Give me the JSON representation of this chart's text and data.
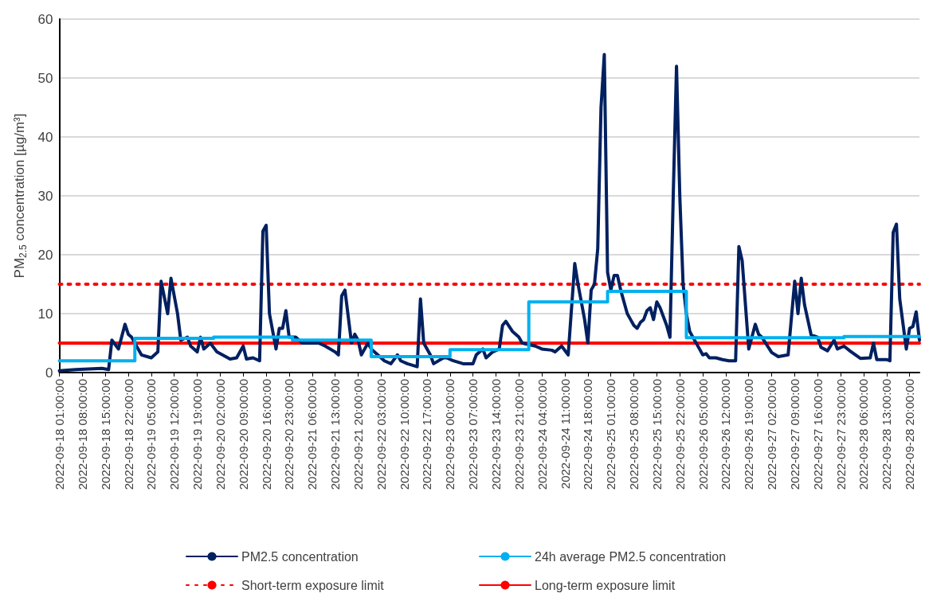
{
  "chart_data": {
    "type": "line",
    "ylabel": "PM$_{2.5}$ concentration [µg/m³]",
    "xlim": [
      "2022-09-18T01:00",
      "2022-09-28T23:00"
    ],
    "xticks": [
      {
        "value": "2022-09-18T01:00",
        "label": "2022-09-18 01:00:00"
      },
      {
        "value": "2022-09-18T08:00",
        "label": "2022-09-18 08:00:00"
      },
      {
        "value": "2022-09-18T15:00",
        "label": "2022-09-18 15:00:00"
      },
      {
        "value": "2022-09-18T22:00",
        "label": "2022-09-18 22:00:00"
      },
      {
        "value": "2022-09-19T05:00",
        "label": "2022-09-19 05:00:00"
      },
      {
        "value": "2022-09-19T12:00",
        "label": "2022-09-19 12:00:00"
      },
      {
        "value": "2022-09-19T19:00",
        "label": "2022-09-19 19:00:00"
      },
      {
        "value": "2022-09-20T02:00",
        "label": "2022-09-20 02:00:00"
      },
      {
        "value": "2022-09-20T09:00",
        "label": "2022-09-20 09:00:00"
      },
      {
        "value": "2022-09-20T16:00",
        "label": "2022-09-20 16:00:00"
      },
      {
        "value": "2022-09-20T23:00",
        "label": "2022-09-20 23:00:00"
      },
      {
        "value": "2022-09-21T06:00",
        "label": "2022-09-21 06:00:00"
      },
      {
        "value": "2022-09-21T13:00",
        "label": "2022-09-21 13:00:00"
      },
      {
        "value": "2022-09-21T20:00",
        "label": "2022-09-21 20:00:00"
      },
      {
        "value": "2022-09-22T03:00",
        "label": "2022-09-22 03:00:00"
      },
      {
        "value": "2022-09-22T10:00",
        "label": "2022-09-22 10:00:00"
      },
      {
        "value": "2022-09-22T17:00",
        "label": "2022-09-22 17:00:00"
      },
      {
        "value": "2022-09-23T00:00",
        "label": "2022-09-23 00:00:00"
      },
      {
        "value": "2022-09-23T07:00",
        "label": "2022-09-23 07:00:00"
      },
      {
        "value": "2022-09-23T14:00",
        "label": "2022-09-23 14:00:00"
      },
      {
        "value": "2022-09-23T21:00",
        "label": "2022-09-23 21:00:00"
      },
      {
        "value": "2022-09-24T04:00",
        "label": "2022-09-24 04:00:00"
      },
      {
        "value": "2022-09-24T11:00",
        "label": "2022-09-24 11:00:00"
      },
      {
        "value": "2022-09-24T18:00",
        "label": "2022-09-24 18:00:00"
      },
      {
        "value": "2022-09-25T01:00",
        "label": "2022-09-25 01:00:00"
      },
      {
        "value": "2022-09-25T08:00",
        "label": "2022-09-25 08:00:00"
      },
      {
        "value": "2022-09-25T15:00",
        "label": "2022-09-25 15:00:00"
      },
      {
        "value": "2022-09-25T22:00",
        "label": "2022-09-25 22:00:00"
      },
      {
        "value": "2022-09-26T05:00",
        "label": "2022-09-26 05:00:00"
      },
      {
        "value": "2022-09-26T12:00",
        "label": "2022-09-26 12:00:00"
      },
      {
        "value": "2022-09-26T19:00",
        "label": "2022-09-26 19:00:00"
      },
      {
        "value": "2022-09-27T02:00",
        "label": "2022-09-27 02:00:00"
      },
      {
        "value": "2022-09-27T09:00",
        "label": "2022-09-27 09:00:00"
      },
      {
        "value": "2022-09-27T16:00",
        "label": "2022-09-27 16:00:00"
      },
      {
        "value": "2022-09-27T23:00",
        "label": "2022-09-27 23:00:00"
      },
      {
        "value": "2022-09-28T06:00",
        "label": "2022-09-28 06:00:00"
      },
      {
        "value": "2022-09-28T13:00",
        "label": "2022-09-28 13:00:00"
      },
      {
        "value": "2022-09-28T20:00",
        "label": "2022-09-28 20:00:00"
      }
    ],
    "ylim": [
      0,
      60
    ],
    "yticks": [
      0,
      10,
      20,
      30,
      40,
      50,
      60
    ],
    "grid": "y",
    "legend": "bottom",
    "marker": "none",
    "line_style": "solid",
    "series": [
      {
        "name": "PM2.5 concentration",
        "type": "line",
        "color": "#002060",
        "x": [
          "2022-09-18T01:00",
          "2022-09-18T06:00",
          "2022-09-18T14:00",
          "2022-09-18T16:00",
          "2022-09-18T17:00",
          "2022-09-18T19:00",
          "2022-09-18T21:00",
          "2022-09-18T22:00",
          "2022-09-18T23:00",
          "2022-09-19T01:00",
          "2022-09-19T02:00",
          "2022-09-19T05:00",
          "2022-09-19T07:00",
          "2022-09-19T08:00",
          "2022-09-19T10:00",
          "2022-09-19T11:00",
          "2022-09-19T13:00",
          "2022-09-19T14:00",
          "2022-09-19T16:00",
          "2022-09-19T17:00",
          "2022-09-19T19:00",
          "2022-09-19T20:00",
          "2022-09-19T21:00",
          "2022-09-19T23:00",
          "2022-09-20T01:00",
          "2022-09-20T05:00",
          "2022-09-20T07:00",
          "2022-09-20T09:00",
          "2022-09-20T10:00",
          "2022-09-20T12:00",
          "2022-09-20T14:00",
          "2022-09-20T15:00",
          "2022-09-20T16:00",
          "2022-09-20T17:00",
          "2022-09-20T19:00",
          "2022-09-20T20:00",
          "2022-09-20T21:00",
          "2022-09-20T22:00",
          "2022-09-20T23:00",
          "2022-09-21T01:00",
          "2022-09-21T03:00",
          "2022-09-21T05:00",
          "2022-09-21T08:00",
          "2022-09-21T10:00",
          "2022-09-21T13:00",
          "2022-09-21T14:00",
          "2022-09-21T15:00",
          "2022-09-21T16:00",
          "2022-09-21T18:00",
          "2022-09-21T19:00",
          "2022-09-21T20:00",
          "2022-09-21T21:00",
          "2022-09-21T23:00",
          "2022-09-22T00:00",
          "2022-09-22T02:00",
          "2022-09-22T04:00",
          "2022-09-22T06:00",
          "2022-09-22T08:00",
          "2022-09-22T09:00",
          "2022-09-22T11:00",
          "2022-09-22T14:00",
          "2022-09-22T15:00",
          "2022-09-22T16:00",
          "2022-09-22T18:00",
          "2022-09-22T19:00",
          "2022-09-22T22:00",
          "2022-09-22T23:00",
          "2022-09-23T01:00",
          "2022-09-23T04:00",
          "2022-09-23T07:00",
          "2022-09-23T08:00",
          "2022-09-23T10:00",
          "2022-09-23T11:00",
          "2022-09-23T13:00",
          "2022-09-23T15:00",
          "2022-09-23T16:00",
          "2022-09-23T17:00",
          "2022-09-23T19:00",
          "2022-09-23T21:00",
          "2022-09-23T22:00",
          "2022-09-24T02:00",
          "2022-09-24T04:00",
          "2022-09-24T07:00",
          "2022-09-24T08:00",
          "2022-09-24T10:00",
          "2022-09-24T12:00",
          "2022-09-24T14:00",
          "2022-09-24T15:00",
          "2022-09-24T17:00",
          "2022-09-24T18:00",
          "2022-09-24T19:00",
          "2022-09-24T20:00",
          "2022-09-24T21:00",
          "2022-09-24T22:00",
          "2022-09-24T23:00",
          "2022-09-25T00:00",
          "2022-09-25T01:00",
          "2022-09-25T02:00",
          "2022-09-25T03:00",
          "2022-09-25T04:00",
          "2022-09-25T05:00",
          "2022-09-25T06:00",
          "2022-09-25T07:00",
          "2022-09-25T08:00",
          "2022-09-25T09:00",
          "2022-09-25T10:00",
          "2022-09-25T11:00",
          "2022-09-25T12:00",
          "2022-09-25T13:00",
          "2022-09-25T14:00",
          "2022-09-25T15:00",
          "2022-09-25T16:00",
          "2022-09-25T17:00",
          "2022-09-25T18:00",
          "2022-09-25T19:00",
          "2022-09-25T20:00",
          "2022-09-25T21:00",
          "2022-09-25T22:00",
          "2022-09-25T23:00",
          "2022-09-26T00:00",
          "2022-09-26T01:00",
          "2022-09-26T02:00",
          "2022-09-26T03:00",
          "2022-09-26T04:00",
          "2022-09-26T05:00",
          "2022-09-26T06:00",
          "2022-09-26T07:00",
          "2022-09-26T09:00",
          "2022-09-26T11:00",
          "2022-09-26T13:00",
          "2022-09-26T15:00",
          "2022-09-26T16:00",
          "2022-09-26T17:00",
          "2022-09-26T19:00",
          "2022-09-26T21:00",
          "2022-09-26T22:00",
          "2022-09-26T23:00",
          "2022-09-27T02:00",
          "2022-09-27T04:00",
          "2022-09-27T07:00",
          "2022-09-27T09:00",
          "2022-09-27T10:00",
          "2022-09-27T11:00",
          "2022-09-27T12:00",
          "2022-09-27T14:00",
          "2022-09-27T16:00",
          "2022-09-27T17:00",
          "2022-09-27T19:00",
          "2022-09-27T21:00",
          "2022-09-27T22:00",
          "2022-09-28T00:00",
          "2022-09-28T02:00",
          "2022-09-28T05:00",
          "2022-09-28T08:00",
          "2022-09-28T09:00",
          "2022-09-28T10:00",
          "2022-09-28T13:00",
          "2022-09-28T14:00",
          "2022-09-28T15:00",
          "2022-09-28T16:00",
          "2022-09-28T17:00",
          "2022-09-28T19:00",
          "2022-09-28T20:00",
          "2022-09-28T21:00",
          "2022-09-28T22:00",
          "2022-09-28T23:00"
        ],
        "values": [
          0.3,
          0.5,
          0.7,
          0.5,
          5.5,
          4,
          8.2,
          6.5,
          6,
          4,
          3,
          2.5,
          3.5,
          15.5,
          10,
          16,
          10,
          5.5,
          6,
          4.5,
          3.5,
          6,
          4,
          5,
          3.5,
          2.3,
          2.5,
          4.5,
          2.3,
          2.5,
          2,
          24,
          25,
          10,
          4,
          7.5,
          7.5,
          10.5,
          6,
          6,
          5,
          5,
          5,
          4.5,
          3.5,
          3,
          13,
          14,
          5,
          6.5,
          5.5,
          3,
          5,
          4,
          3,
          2,
          1.5,
          3,
          2,
          1.5,
          1,
          12.5,
          5,
          3,
          1.5,
          2.5,
          2.5,
          2,
          1.5,
          1.5,
          3,
          4,
          2.5,
          3.5,
          4,
          8,
          8.7,
          7,
          6,
          5,
          4.5,
          4,
          3.8,
          3.5,
          4.5,
          3,
          18.5,
          15,
          9,
          5,
          14,
          15,
          21,
          45,
          54,
          17,
          14,
          16.5,
          16.5,
          14,
          12,
          10,
          9,
          8,
          7.5,
          8.5,
          9,
          10.5,
          11,
          9,
          12,
          11,
          9.5,
          8,
          6,
          30,
          52,
          30,
          15,
          10,
          7,
          6,
          5,
          4,
          3,
          3.2,
          2.5,
          2.5,
          2.2,
          2,
          2,
          21.4,
          19,
          4,
          8.2,
          6.5,
          6,
          3.4,
          2.7,
          3,
          15.5,
          10,
          16,
          11.5,
          6.4,
          6,
          4.3,
          3.7,
          5.5,
          4,
          4.5,
          3.6,
          2.4,
          2.5,
          5,
          2.2,
          2.2,
          2,
          23.8,
          25.2,
          12.5,
          4,
          7.5,
          7.8,
          10.3,
          5.5
        ]
      },
      {
        "name": "24h average PM2.5 concentration",
        "type": "step",
        "color": "#00b0f0",
        "x": [
          "2022-09-18T01:00",
          "2022-09-19T00:00",
          "2022-09-20T00:00",
          "2022-09-21T00:00",
          "2022-09-22T00:00",
          "2022-09-23T00:00",
          "2022-09-24T00:00",
          "2022-09-25T00:00",
          "2022-09-26T00:00",
          "2022-09-28T00:00",
          "2022-09-28T23:00"
        ],
        "values": [
          2,
          5.8,
          6,
          5.5,
          2.7,
          3.9,
          12,
          13.8,
          5.9,
          6.1,
          6.1
        ]
      }
    ],
    "ref_lines": [
      {
        "axis": "y",
        "value": 15,
        "label": "Short-term exposure limit",
        "color": "#ff0000",
        "line_style": "dotted"
      },
      {
        "axis": "y",
        "value": 5,
        "label": "Long-term exposure limit",
        "color": "#ff0000",
        "line_style": "solid"
      }
    ]
  }
}
